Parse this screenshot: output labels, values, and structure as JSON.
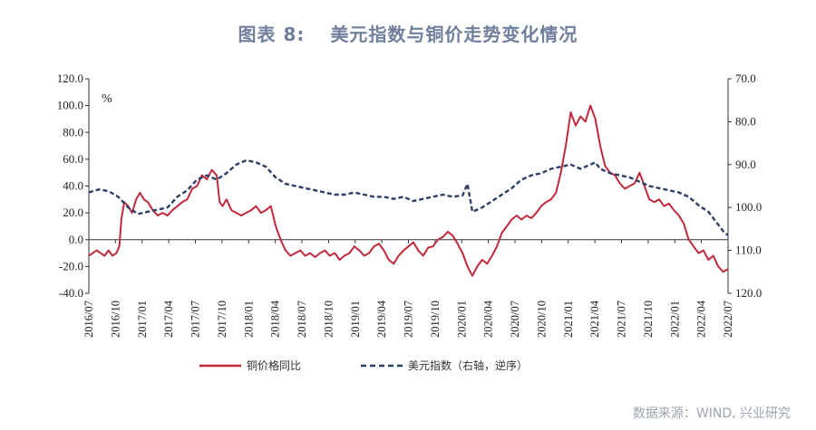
{
  "header": {
    "figure_no": "图表 8:",
    "title": "美元指数与铜价走势变化情况"
  },
  "source": "数据来源：WIND, 兴业研究",
  "chart_data": {
    "type": "line",
    "unit_left": "%",
    "left_axis": {
      "min": -40,
      "max": 120,
      "ticks": [
        "120.0",
        "100.0",
        "80.0",
        "60.0",
        "40.0",
        "20.0",
        "0.0",
        "-20.0",
        "-40.0"
      ]
    },
    "right_axis": {
      "min": 70,
      "max": 120,
      "inverted": true,
      "ticks": [
        "70.0",
        "80.0",
        "90.0",
        "100.0",
        "110.0",
        "120.0"
      ]
    },
    "x_ticks": [
      "2016/07",
      "2016/10",
      "2017/01",
      "2017/04",
      "2017/07",
      "2017/10",
      "2018/01",
      "2018/04",
      "2018/07",
      "2018/10",
      "2019/01",
      "2019/04",
      "2019/07",
      "2019/10",
      "2020/01",
      "2020/04",
      "2020/07",
      "2020/10",
      "2021/01",
      "2021/04",
      "2021/07",
      "2021/10",
      "2022/01",
      "2022/04",
      "2022/07"
    ],
    "legend_position": "bottom",
    "series": [
      {
        "name": "铜价格同比",
        "axis": "left",
        "color": "#c0283c",
        "style": "solid",
        "points": [
          [
            0,
            -12
          ],
          [
            0.4,
            -10
          ],
          [
            0.8,
            -8
          ],
          [
            1.2,
            -10
          ],
          [
            1.6,
            -12
          ],
          [
            2,
            -8
          ],
          [
            2.4,
            -12
          ],
          [
            2.8,
            -10
          ],
          [
            3.1,
            -5
          ],
          [
            3.3,
            15
          ],
          [
            3.6,
            28
          ],
          [
            4,
            25
          ],
          [
            4.4,
            20
          ],
          [
            4.8,
            30
          ],
          [
            5.2,
            35
          ],
          [
            5.6,
            30
          ],
          [
            6,
            28
          ],
          [
            6.5,
            22
          ],
          [
            7,
            18
          ],
          [
            7.5,
            20
          ],
          [
            8,
            18
          ],
          [
            8.5,
            22
          ],
          [
            9,
            25
          ],
          [
            9.5,
            28
          ],
          [
            10,
            30
          ],
          [
            10.5,
            38
          ],
          [
            11,
            40
          ],
          [
            11.5,
            48
          ],
          [
            12,
            45
          ],
          [
            12.5,
            52
          ],
          [
            13,
            48
          ],
          [
            13.3,
            28
          ],
          [
            13.6,
            25
          ],
          [
            14,
            30
          ],
          [
            14.5,
            22
          ],
          [
            15,
            20
          ],
          [
            15.5,
            18
          ],
          [
            16,
            20
          ],
          [
            16.5,
            22
          ],
          [
            17,
            25
          ],
          [
            17.5,
            20
          ],
          [
            18,
            22
          ],
          [
            18.5,
            25
          ],
          [
            19,
            10
          ],
          [
            19.5,
            0
          ],
          [
            20,
            -8
          ],
          [
            20.5,
            -12
          ],
          [
            21,
            -10
          ],
          [
            21.5,
            -8
          ],
          [
            22,
            -12
          ],
          [
            22.5,
            -10
          ],
          [
            23,
            -13
          ],
          [
            23.5,
            -10
          ],
          [
            24,
            -8
          ],
          [
            24.5,
            -12
          ],
          [
            25,
            -10
          ],
          [
            25.5,
            -15
          ],
          [
            26,
            -12
          ],
          [
            26.5,
            -10
          ],
          [
            27,
            -5
          ],
          [
            27.5,
            -8
          ],
          [
            28,
            -12
          ],
          [
            28.5,
            -10
          ],
          [
            29,
            -5
          ],
          [
            29.5,
            -3
          ],
          [
            30,
            -8
          ],
          [
            30.5,
            -15
          ],
          [
            31,
            -18
          ],
          [
            31.5,
            -12
          ],
          [
            32,
            -8
          ],
          [
            32.5,
            -5
          ],
          [
            33,
            -2
          ],
          [
            33.5,
            -8
          ],
          [
            34,
            -12
          ],
          [
            34.5,
            -6
          ],
          [
            35,
            -5
          ],
          [
            35.5,
            0
          ],
          [
            36,
            2
          ],
          [
            36.5,
            6
          ],
          [
            37,
            3
          ],
          [
            37.5,
            -3
          ],
          [
            38,
            -10
          ],
          [
            38.5,
            -20
          ],
          [
            39,
            -27
          ],
          [
            39.5,
            -20
          ],
          [
            40,
            -15
          ],
          [
            40.5,
            -18
          ],
          [
            41,
            -12
          ],
          [
            41.5,
            -5
          ],
          [
            42,
            5
          ],
          [
            42.5,
            10
          ],
          [
            43,
            15
          ],
          [
            43.5,
            18
          ],
          [
            44,
            15
          ],
          [
            44.5,
            18
          ],
          [
            45,
            16
          ],
          [
            45.5,
            20
          ],
          [
            46,
            25
          ],
          [
            46.5,
            28
          ],
          [
            47,
            30
          ],
          [
            47.5,
            35
          ],
          [
            48,
            50
          ],
          [
            48.5,
            70
          ],
          [
            49,
            95
          ],
          [
            49.5,
            85
          ],
          [
            50,
            92
          ],
          [
            50.5,
            88
          ],
          [
            51,
            100
          ],
          [
            51.5,
            90
          ],
          [
            52,
            70
          ],
          [
            52.5,
            55
          ],
          [
            53,
            50
          ],
          [
            53.5,
            48
          ],
          [
            54,
            42
          ],
          [
            54.5,
            38
          ],
          [
            55,
            40
          ],
          [
            55.5,
            42
          ],
          [
            56,
            50
          ],
          [
            56.5,
            40
          ],
          [
            57,
            30
          ],
          [
            57.5,
            28
          ],
          [
            58,
            30
          ],
          [
            58.5,
            25
          ],
          [
            59,
            27
          ],
          [
            59.5,
            22
          ],
          [
            60,
            18
          ],
          [
            60.5,
            12
          ],
          [
            61,
            0
          ],
          [
            61.5,
            -5
          ],
          [
            62,
            -10
          ],
          [
            62.5,
            -8
          ],
          [
            63,
            -15
          ],
          [
            63.5,
            -12
          ],
          [
            64,
            -20
          ],
          [
            64.5,
            -24
          ],
          [
            65,
            -22
          ]
        ]
      },
      {
        "name": "美元指数（右轴，逆序）",
        "axis": "right",
        "color": "#2c3e63",
        "style": "dashed",
        "points": [
          [
            0,
            96.5
          ],
          [
            1,
            95.8
          ],
          [
            2,
            96.2
          ],
          [
            3,
            97.5
          ],
          [
            4,
            100
          ],
          [
            5,
            101.5
          ],
          [
            6,
            101
          ],
          [
            7,
            100.5
          ],
          [
            8,
            100
          ],
          [
            9,
            97.5
          ],
          [
            10,
            96
          ],
          [
            11,
            93.5
          ],
          [
            12,
            92.5
          ],
          [
            13,
            93.5
          ],
          [
            14,
            92
          ],
          [
            15,
            90
          ],
          [
            16,
            89
          ],
          [
            17,
            89.5
          ],
          [
            18,
            90.5
          ],
          [
            19,
            93
          ],
          [
            20,
            94.5
          ],
          [
            21,
            95
          ],
          [
            22,
            95.5
          ],
          [
            23,
            96
          ],
          [
            24,
            96.5
          ],
          [
            25,
            97
          ],
          [
            26,
            97
          ],
          [
            27,
            96.5
          ],
          [
            28,
            97
          ],
          [
            29,
            97.5
          ],
          [
            30,
            97.5
          ],
          [
            31,
            98
          ],
          [
            32,
            97.5
          ],
          [
            33,
            98.5
          ],
          [
            34,
            98
          ],
          [
            35,
            97.5
          ],
          [
            36,
            97
          ],
          [
            37,
            97.5
          ],
          [
            38,
            97.2
          ],
          [
            38.5,
            94.5
          ],
          [
            39,
            101
          ],
          [
            40,
            100
          ],
          [
            41,
            98.5
          ],
          [
            42,
            97
          ],
          [
            43,
            95.5
          ],
          [
            44,
            93.5
          ],
          [
            45,
            92.5
          ],
          [
            46,
            92
          ],
          [
            47,
            91
          ],
          [
            48,
            90.5
          ],
          [
            49,
            90
          ],
          [
            50,
            91
          ],
          [
            51,
            90
          ],
          [
            51.5,
            89.5
          ],
          [
            52,
            91
          ],
          [
            53,
            92
          ],
          [
            54,
            92.5
          ],
          [
            55,
            93
          ],
          [
            56,
            94
          ],
          [
            57,
            95
          ],
          [
            58,
            95.5
          ],
          [
            59,
            96
          ],
          [
            60,
            96.5
          ],
          [
            61,
            97.5
          ],
          [
            62,
            99.5
          ],
          [
            63,
            101
          ],
          [
            64,
            104
          ],
          [
            64.5,
            105.5
          ],
          [
            65,
            106.5
          ]
        ]
      }
    ]
  }
}
